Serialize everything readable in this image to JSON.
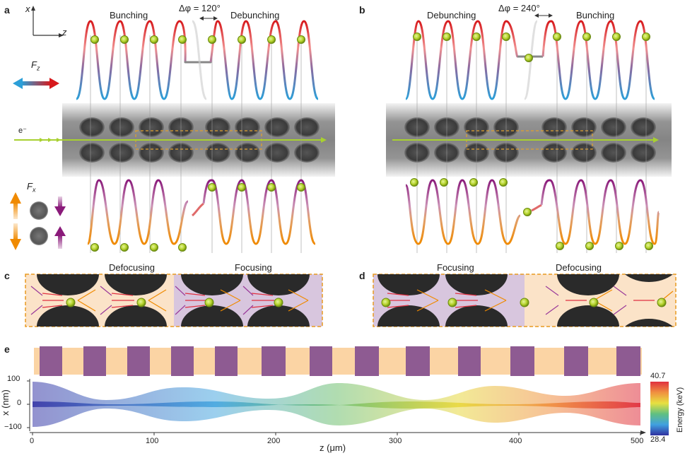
{
  "panels": {
    "a": "a",
    "b": "b",
    "c": "c",
    "d": "d",
    "e": "e"
  },
  "panel_a": {
    "left_label": "Bunching",
    "right_label": "Debunching",
    "phase": "Δφ = 120°",
    "axis_x": "x",
    "axis_z": "z",
    "force_z": "F",
    "force_z_sub": "z",
    "force_x": "F",
    "force_x_sub": "x",
    "electron": "e⁻"
  },
  "panel_b": {
    "left_label": "Debunching",
    "right_label": "Bunching",
    "phase": "Δφ = 240°"
  },
  "panel_c": {
    "left_label": "Defocusing",
    "right_label": "Focusing"
  },
  "panel_d": {
    "left_label": "Focusing",
    "right_label": "Defocusing"
  },
  "panel_e": {
    "xlabel": "z (μm)",
    "ylabel": "x (nm)",
    "xticks": [
      "0",
      "100",
      "200",
      "300",
      "400",
      "500"
    ],
    "yticks": [
      "100",
      "0",
      "−100"
    ],
    "colorbar": {
      "title": "Energy (keV)",
      "max": "40.7",
      "min": "28.4"
    }
  },
  "colors": {
    "red": "#d7191c",
    "blue": "#2c9fd8",
    "purple": "#8a1a7a",
    "orange": "#f08a00",
    "green": "#9acd32",
    "gold": "#e8a030",
    "peach": "#f9d9b0",
    "violet": "#9a6898"
  }
}
